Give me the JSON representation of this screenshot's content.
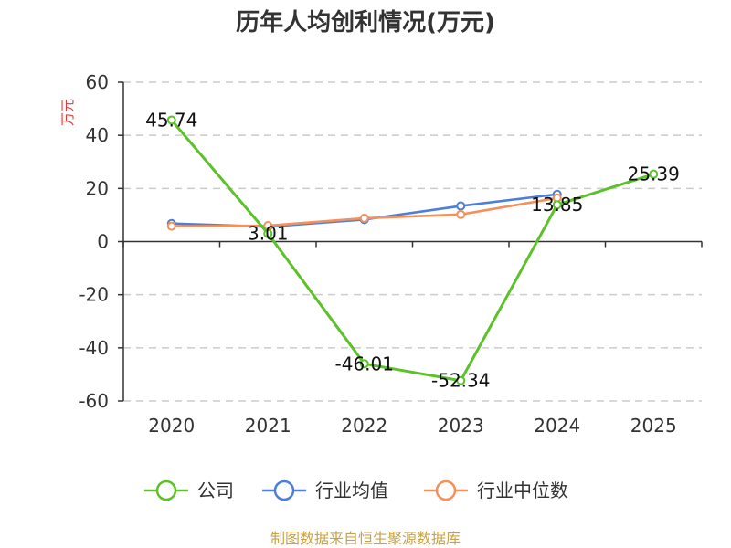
{
  "chart_data": {
    "type": "line",
    "title": "历年人均创利情况(万元)",
    "ylabel": "万元",
    "categories": [
      "2020",
      "2021",
      "2022",
      "2023",
      "2024",
      "2025"
    ],
    "ylim": [
      -60,
      60
    ],
    "yticks": [
      60,
      40,
      20,
      0,
      -20,
      -40,
      -60
    ],
    "grid": true,
    "legend_position": "bottom",
    "series": [
      {
        "name": "公司",
        "color": "#5bc229",
        "values": [
          45.74,
          3.01,
          -46.01,
          -52.34,
          13.85,
          25.39
        ],
        "labels": [
          "45.74",
          "3.01",
          "-46.01",
          "-52.34",
          "13.85",
          "25.39"
        ]
      },
      {
        "name": "行业均值",
        "color": "#4a7fdc",
        "values": [
          6.8,
          5.6,
          8.3,
          13.4,
          17.8,
          null
        ]
      },
      {
        "name": "行业中位数",
        "color": "#f5905a",
        "values": [
          5.8,
          6.0,
          8.8,
          10.2,
          16.4,
          null
        ]
      }
    ]
  },
  "source": "制图数据来自恒生聚源数据库"
}
